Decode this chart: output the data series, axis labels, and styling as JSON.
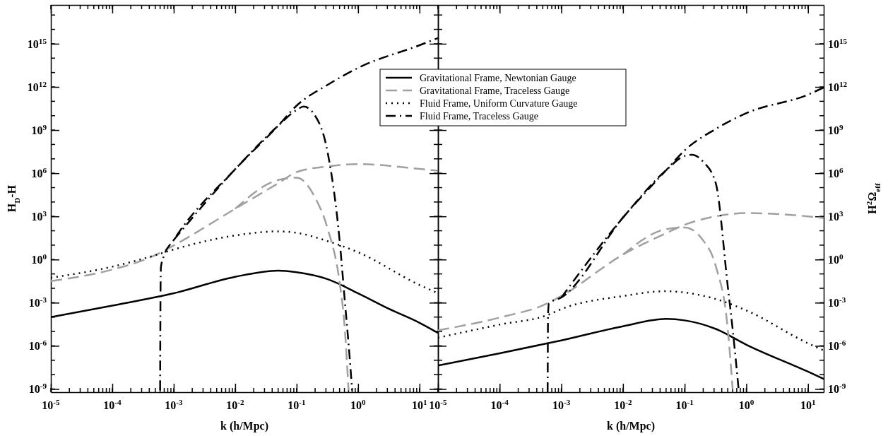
{
  "chart_data": [
    {
      "type": "line",
      "log": "xy",
      "xlabel": "k (h/Mpc)",
      "ylabel": "H$_{D}$-H",
      "xlim": [
        1e-05,
        20
      ],
      "ylim": [
        6e-10,
        5e+17
      ],
      "xticks": [
        {
          "value": 1e-05,
          "label": "10$^{-5}$"
        },
        {
          "value": 0.0001,
          "label": "10$^{-4}$"
        },
        {
          "value": 0.001,
          "label": "10$^{-3}$"
        },
        {
          "value": 0.01,
          "label": "10$^{-2}$"
        },
        {
          "value": 0.1,
          "label": "10$^{-1}$"
        },
        {
          "value": 1,
          "label": "10$^{0}$"
        },
        {
          "value": 10,
          "label": "10$^{1}$"
        }
      ],
      "yticks": [
        {
          "value": 1e-09,
          "label": "10$^{-9}$"
        },
        {
          "value": 1e-06,
          "label": "10$^{-6}$"
        },
        {
          "value": 0.001,
          "label": "10$^{-3}$"
        },
        {
          "value": 1,
          "label": "10$^{0}$"
        },
        {
          "value": 1000.0,
          "label": "10$^{3}$"
        },
        {
          "value": 1000000.0,
          "label": "10$^{6}$"
        },
        {
          "value": 1000000000.0,
          "label": "10$^{9}$"
        },
        {
          "value": 1000000000000.0,
          "label": "10$^{12}$"
        },
        {
          "value": 1000000000000000.0,
          "label": "10$^{15}$"
        }
      ],
      "series": [
        {
          "color": "#000000",
          "line_style": "solid",
          "x": [
            1e-05,
            0.0001,
            0.001,
            0.01,
            0.05,
            0.1,
            0.32,
            1,
            3.2,
            10,
            20
          ],
          "values": [
            0.0001,
            0.00063,
            0.0045,
            0.063,
            0.17,
            0.13,
            0.043,
            0.0045,
            0.00037,
            4e-05,
            7.9e-06
          ]
        },
        {
          "color": "#a0a0a0",
          "line_style": "dashed",
          "x": [
            1e-05,
            0.0001,
            0.0005,
            0.001,
            0.01,
            0.05,
            0.1,
            0.32,
            1,
            10,
            20
          ],
          "values": [
            0.032,
            0.2,
            2,
            9.5,
            3400,
            200000.0,
            1200000.0,
            3000000.0,
            4300000.0,
            2000000.0,
            1500000.0
          ]
        },
        {
          "color": "#a0a0a0",
          "line_style": "dashed",
          "x": [
            0.01,
            0.05,
            0.1,
            0.2,
            0.32,
            0.5,
            0.6,
            0.7
          ],
          "values": [
            3400,
            340000.0,
            490000.0,
            20000.0,
            140,
            0.027,
            3.2e-05,
            8e-10
          ]
        },
        {
          "color": "#000000",
          "line_style": "dotted",
          "x": [
            1e-05,
            0.0001,
            0.0005,
            0.001,
            0.01,
            0.05,
            0.1,
            0.32,
            1,
            10,
            20
          ],
          "values": [
            0.054,
            0.32,
            2,
            5,
            47,
            91,
            72,
            19,
            3.2,
            0.017,
            0.0045
          ]
        },
        {
          "color": "#000000",
          "line_style": "dashdot",
          "x": [
            0.001,
            0.01,
            0.05,
            0.1,
            0.32,
            1,
            10,
            20
          ],
          "values": [
            23,
            1900000.0,
            2000000000.0,
            50000000000.0,
            1400000000000.0,
            21000000000000.0,
            790000000000000.0,
            2500000000000000.0
          ]
        },
        {
          "color": "#000000",
          "line_style": "dashdot",
          "x": [
            0.0006,
            0.00061,
            0.00062,
            0.0007,
            0.001,
            0.01,
            0.05,
            0.1,
            0.13,
            0.2,
            0.32,
            0.5,
            0.6,
            0.75,
            0.8
          ],
          "values": [
            8e-10,
            0.01,
            0.32,
            2,
            23,
            1900000.0,
            2000000000.0,
            25000000000.0,
            43000000000.0,
            10000000000.0,
            28000000.0,
            23,
            0.0028,
            3.5e-08,
            8e-10
          ]
        }
      ]
    },
    {
      "type": "line",
      "log": "xy",
      "xlabel": "k (h/Mpc)",
      "ylabel": "H$^{2}$Ω$_{eff}$",
      "xlim": [
        1e-05,
        18
      ],
      "ylim": [
        6e-10,
        5e+17
      ],
      "legend": "top left",
      "xticks": [
        {
          "value": 1e-05,
          "label": "10$^{-5}$"
        },
        {
          "value": 0.0001,
          "label": "10$^{-4}$"
        },
        {
          "value": 0.001,
          "label": "10$^{-3}$"
        },
        {
          "value": 0.01,
          "label": "10$^{-2}$"
        },
        {
          "value": 0.1,
          "label": "10$^{-1}$"
        },
        {
          "value": 1,
          "label": "10$^{0}$"
        },
        {
          "value": 10,
          "label": "10$^{1}$"
        }
      ],
      "yticks": [
        {
          "value": 1e-09,
          "label": "10$^{-9}$"
        },
        {
          "value": 1e-06,
          "label": "10$^{-6}$"
        },
        {
          "value": 0.001,
          "label": "10$^{-3}$"
        },
        {
          "value": 1,
          "label": "10$^{0}$"
        },
        {
          "value": 1000.0,
          "label": "10$^{3}$"
        },
        {
          "value": 1000000.0,
          "label": "10$^{6}$"
        },
        {
          "value": 1000000000.0,
          "label": "10$^{9}$"
        },
        {
          "value": 1000000000000.0,
          "label": "10$^{12}$"
        },
        {
          "value": 1000000000000000.0,
          "label": "10$^{15}$"
        }
      ],
      "series": [
        {
          "name": "Gravitational Frame, Newtonian Gauge",
          "color": "#000000",
          "line_style": "solid",
          "x": [
            1e-05,
            0.0001,
            0.001,
            0.01,
            0.05,
            0.1,
            0.32,
            1,
            10,
            18
          ],
          "values": [
            4.3e-08,
            3e-07,
            2.4e-06,
            2.3e-05,
            7.4e-05,
            5.9e-05,
            1.5e-05,
            1.2e-06,
            1.6e-08,
            5e-09
          ]
        },
        {
          "name": "Gravitational Frame, Traceless Gauge",
          "color": "#a0a0a0",
          "line_style": "dashed",
          "x": [
            1e-05,
            0.0001,
            0.0006,
            0.001,
            0.01,
            0.05,
            0.1,
            0.32,
            1,
            10,
            18
          ],
          "values": [
            1.2e-05,
            9.3e-05,
            0.00091,
            0.0029,
            2.2,
            68,
            260,
            1000,
            1700,
            1000,
            760
          ]
        },
        {
          "color": "#a0a0a0",
          "line_style": "dashed",
          "x": [
            0.01,
            0.05,
            0.1,
            0.2,
            0.32,
            0.5,
            0.6
          ],
          "values": [
            2.2,
            130,
            170,
            21,
            0.35,
            1.5e-05,
            1e-09
          ]
        },
        {
          "name": "Fluid Frame, Uniform Curvature Gauge",
          "color": "#000000",
          "line_style": "dotted",
          "x": [
            1e-05,
            0.0001,
            0.0006,
            0.001,
            0.01,
            0.05,
            0.1,
            0.32,
            1,
            10,
            18
          ],
          "values": [
            3.7e-06,
            3e-05,
            0.00014,
            0.00036,
            0.0029,
            0.0063,
            0.0051,
            0.0018,
            0.00029,
            1.5e-06,
            4.8e-07
          ]
        },
        {
          "name": "Fluid Frame, Traceless Gauge",
          "color": "#000000",
          "line_style": "dashdot",
          "x": [
            0.001,
            0.01,
            0.05,
            0.1,
            0.32,
            1,
            10,
            18
          ],
          "values": [
            0.0023,
            830,
            1600000.0,
            39000000.0,
            1200000000.0,
            15000000000.0,
            290000000000.0,
            910000000000.0
          ]
        },
        {
          "color": "#000000",
          "line_style": "dashdot",
          "x": [
            0.0006,
            0.00061,
            0.00063,
            0.001,
            0.01,
            0.05,
            0.1,
            0.13,
            0.2,
            0.32,
            0.5,
            0.6,
            0.75
          ],
          "values": [
            6e-10,
            0.00018,
            0.00091,
            0.0023,
            830,
            1600000.0,
            16000000.0,
            19000000.0,
            6300000.0,
            200000.0,
            0.014,
            1.5e-05,
            1e-09
          ]
        }
      ]
    }
  ]
}
